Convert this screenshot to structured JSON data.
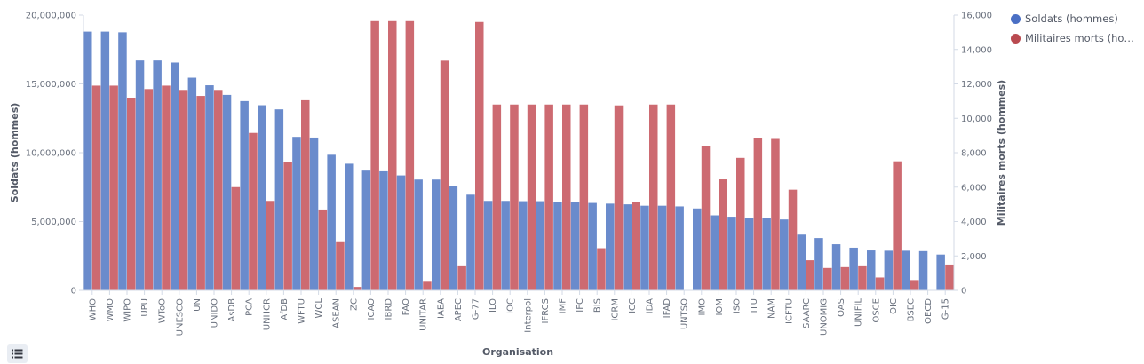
{
  "chart_data": {
    "type": "bar",
    "xlabel": "Organisation",
    "ylabel_left": "Soldats (hommes)",
    "ylabel_right": "Militaires morts (hommes)",
    "ylim_left": [
      0,
      20000000
    ],
    "ylim_right": [
      0,
      16000
    ],
    "yticks_left": [
      "0",
      "5,000,000",
      "10,000,000",
      "15,000,000",
      "20,000,000"
    ],
    "yticks_right": [
      "0",
      "2,000",
      "4,000",
      "6,000",
      "8,000",
      "10,000",
      "12,000",
      "14,000",
      "16,000"
    ],
    "categories": [
      "WHO",
      "WMO",
      "WIPO",
      "UPU",
      "WToO",
      "UNESCO",
      "UN",
      "UNIDO",
      "AsDB",
      "PCA",
      "UNHCR",
      "AfDB",
      "WFTU",
      "WCL",
      "ASEAN",
      "ZC",
      "ICAO",
      "IBRD",
      "FAO",
      "UNITAR",
      "IAEA",
      "APEC",
      "G-77",
      "ILO",
      "IOC",
      "Interpol",
      "IFRCS",
      "IMF",
      "IFC",
      "BIS",
      "ICRM",
      "ICC",
      "IDA",
      "IFAD",
      "UNTSO",
      "IMO",
      "IOM",
      "ISO",
      "ITU",
      "NAM",
      "ICFTU",
      "SAARC",
      "UNOMIG",
      "OAS",
      "UNIFIL",
      "OSCE",
      "OIC",
      "BSEC",
      "OECD",
      "G-15"
    ],
    "series": [
      {
        "name": "Soldats (hommes)",
        "axis": "left",
        "color": "#6a8bcc",
        "values": [
          18800000,
          18800000,
          18750000,
          16700000,
          16700000,
          16550000,
          15450000,
          14900000,
          14200000,
          13750000,
          13450000,
          13150000,
          11150000,
          11100000,
          9850000,
          9200000,
          8700000,
          8650000,
          8350000,
          8050000,
          8050000,
          7550000,
          6950000,
          6500000,
          6500000,
          6480000,
          6480000,
          6450000,
          6450000,
          6350000,
          6300000,
          6250000,
          6150000,
          6150000,
          6100000,
          5950000,
          5450000,
          5350000,
          5250000,
          5250000,
          5150000,
          4050000,
          3800000,
          3350000,
          3100000,
          2900000,
          2880000,
          2880000,
          2850000,
          2600000
        ]
      },
      {
        "name": "Militaires morts (hommes)",
        "axis": "right",
        "color": "#cd6a71",
        "values": [
          11900,
          11900,
          11200,
          11700,
          11900,
          11650,
          11300,
          11650,
          6000,
          9150,
          5200,
          7450,
          11050,
          4700,
          2800,
          200,
          15650,
          15650,
          15650,
          500,
          13350,
          1400,
          15600,
          10800,
          10800,
          10800,
          10800,
          10800,
          10800,
          2450,
          10750,
          5150,
          10800,
          10800,
          0,
          8400,
          6450,
          7700,
          8850,
          8800,
          5850,
          1750,
          1300,
          1350,
          1400,
          750,
          7500,
          600,
          0,
          1500
        ]
      }
    ],
    "legend": {
      "position": "top-right",
      "items": [
        "Soldats (hommes)",
        "Militaires morts (hommes)"
      ],
      "display": [
        "Soldats (hommes)",
        "Militaires morts (hom..."
      ]
    },
    "colors": {
      "series1": "#6a8bcc",
      "series2": "#cd6a71",
      "legend1": "#4a6fc4",
      "legend2": "#b94a50"
    }
  },
  "ui": {
    "legend_toggle_icon": "list-icon"
  }
}
